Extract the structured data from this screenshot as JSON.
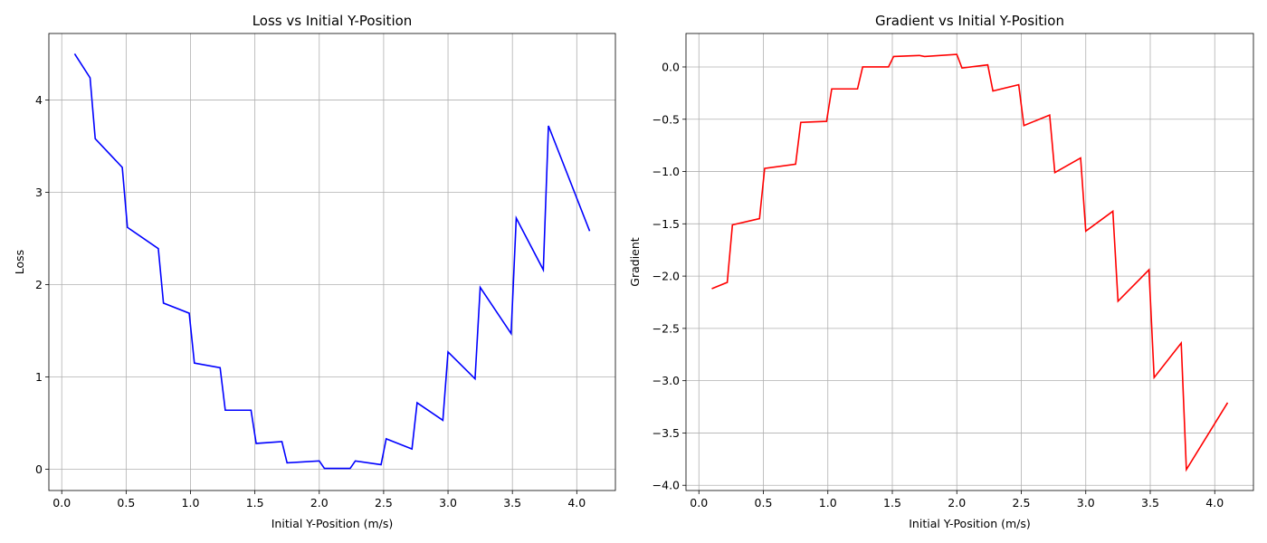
{
  "chart_data": [
    {
      "type": "line",
      "title": "Loss vs Initial Y-Position",
      "xlabel": "Initial Y-Position (m/s)",
      "ylabel": "Loss",
      "xlim": [
        -0.1,
        4.3
      ],
      "ylim": [
        -0.23,
        4.72
      ],
      "xticks": [
        0.0,
        0.5,
        1.0,
        1.5,
        2.0,
        2.5,
        3.0,
        3.5,
        4.0
      ],
      "yticks": [
        0,
        1,
        2,
        3,
        4
      ],
      "grid": true,
      "color": "#0000ff",
      "series": [
        {
          "x": [
            0.1,
            0.22,
            0.26,
            0.47,
            0.51,
            0.75,
            0.79,
            0.99,
            1.03,
            1.23,
            1.27,
            1.47,
            1.51,
            1.71,
            1.75,
            2.0,
            2.04,
            2.24,
            2.28,
            2.48,
            2.52,
            2.72,
            2.76,
            2.96,
            3.0,
            3.21,
            3.25,
            3.49,
            3.53,
            3.74,
            3.78,
            4.1
          ],
          "y": [
            4.5,
            4.24,
            3.58,
            3.27,
            2.62,
            2.39,
            1.8,
            1.69,
            1.15,
            1.1,
            0.64,
            0.64,
            0.28,
            0.3,
            0.07,
            0.09,
            0.01,
            0.01,
            0.09,
            0.05,
            0.33,
            0.22,
            0.72,
            0.53,
            1.27,
            0.98,
            1.97,
            1.47,
            2.72,
            2.16,
            3.72,
            2.58
          ]
        }
      ]
    },
    {
      "type": "line",
      "title": "Gradient vs Initial Y-Position",
      "xlabel": "Initial Y-Position (m/s)",
      "ylabel": "Gradient",
      "xlim": [
        -0.1,
        4.3
      ],
      "ylim": [
        -4.05,
        0.32
      ],
      "xticks": [
        0.0,
        0.5,
        1.0,
        1.5,
        2.0,
        2.5,
        3.0,
        3.5,
        4.0
      ],
      "yticks": [
        0.0,
        -0.5,
        -1.0,
        -1.5,
        -2.0,
        -2.5,
        -3.0,
        -3.5,
        -4.0
      ],
      "grid": true,
      "color": "#ff0000",
      "series": [
        {
          "x": [
            0.1,
            0.22,
            0.26,
            0.47,
            0.51,
            0.75,
            0.79,
            0.99,
            1.03,
            1.23,
            1.27,
            1.47,
            1.51,
            1.71,
            1.75,
            2.0,
            2.04,
            2.24,
            2.28,
            2.48,
            2.52,
            2.72,
            2.76,
            2.96,
            3.0,
            3.21,
            3.25,
            3.49,
            3.53,
            3.74,
            3.78,
            4.1
          ],
          "y": [
            -2.12,
            -2.06,
            -1.51,
            -1.45,
            -0.97,
            -0.93,
            -0.53,
            -0.52,
            -0.21,
            -0.21,
            0.0,
            0.0,
            0.1,
            0.11,
            0.1,
            0.12,
            -0.01,
            0.02,
            -0.23,
            -0.17,
            -0.56,
            -0.46,
            -1.01,
            -0.87,
            -1.57,
            -1.38,
            -2.24,
            -1.94,
            -2.97,
            -2.64,
            -3.85,
            -3.21
          ]
        }
      ]
    }
  ]
}
